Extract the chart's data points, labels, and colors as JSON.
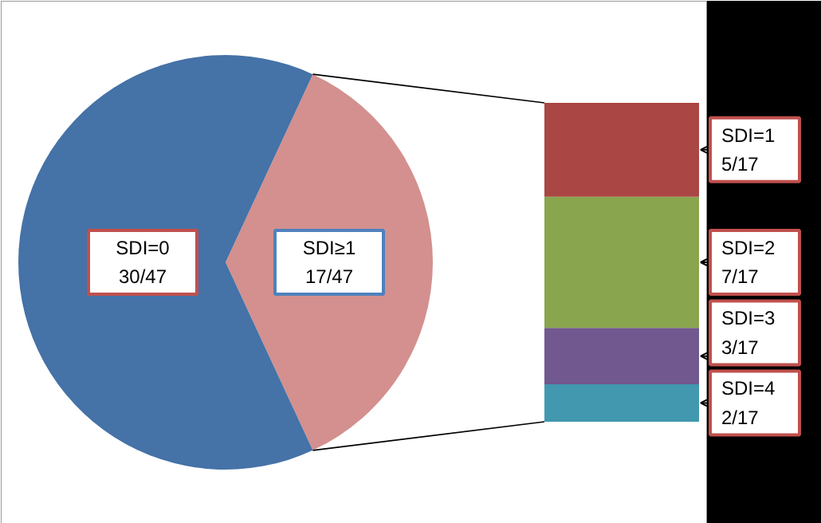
{
  "chart_data": [
    {
      "type": "pie",
      "categories": [
        "SDI=0",
        "SDI≥1"
      ],
      "values": [
        30,
        17
      ],
      "colors": [
        "#4572a7",
        "#d3908e"
      ],
      "value_labels": [
        "30/47",
        "17/47"
      ]
    },
    {
      "type": "bar",
      "stacked": true,
      "categories": [
        null
      ],
      "series": [
        {
          "name": "SDI=4",
          "color": "#4198af",
          "values": [
            2
          ],
          "value_labels": [
            "2/17"
          ]
        },
        {
          "name": "SDI=3",
          "color": "#71588f",
          "values": [
            3
          ],
          "value_labels": [
            "3/17"
          ]
        },
        {
          "name": "SDI=2",
          "color": "#89a54e",
          "values": [
            7
          ],
          "value_labels": [
            "7/17"
          ]
        },
        {
          "name": "SDI=1",
          "color": "#aa4643",
          "values": [
            5
          ],
          "value_labels": [
            "5/17"
          ]
        }
      ]
    }
  ]
}
